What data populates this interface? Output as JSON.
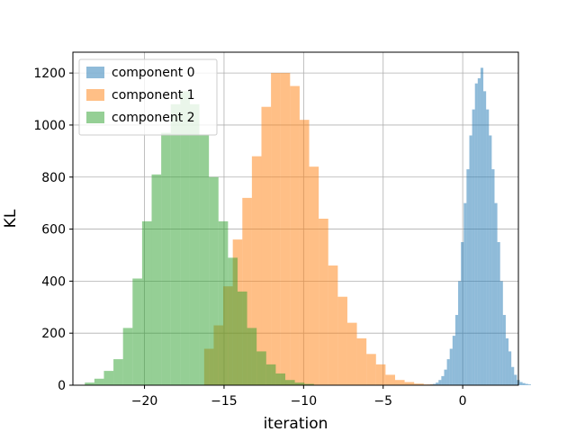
{
  "chart_data": {
    "type": "histogram",
    "xlabel": "iteration",
    "ylabel": "KL",
    "xlim": [
      -24.5,
      3.5
    ],
    "ylim": [
      0,
      1280
    ],
    "xticks": [
      -20,
      -15,
      -10,
      -5,
      0
    ],
    "xtick_labels": [
      "−20",
      "−15",
      "−10",
      "−5",
      "0"
    ],
    "yticks": [
      0,
      200,
      400,
      600,
      800,
      1000,
      1200
    ],
    "ytick_labels": [
      "0",
      "200",
      "400",
      "600",
      "800",
      "1000",
      "1200"
    ],
    "grid": true,
    "legend": "upper-left",
    "alpha": 0.5,
    "series": [
      {
        "name": "component 0",
        "color": "#1f77b4",
        "bin_start": -2.4,
        "bin_width": 0.176,
        "counts": [
          1,
          2,
          3,
          5,
          10,
          20,
          35,
          60,
          100,
          140,
          190,
          270,
          400,
          550,
          700,
          830,
          960,
          1060,
          1160,
          1180,
          1220,
          1130,
          1060,
          960,
          830,
          700,
          550,
          400,
          270,
          180,
          130,
          70,
          40,
          20,
          12,
          8,
          5,
          3
        ]
      },
      {
        "name": "component 1",
        "color": "#ff7f0e",
        "bin_start": -16.25,
        "bin_width": 0.6,
        "counts": [
          140,
          230,
          380,
          560,
          720,
          880,
          1070,
          1200,
          1200,
          1150,
          1020,
          840,
          640,
          460,
          340,
          240,
          180,
          120,
          80,
          40,
          20,
          12,
          6,
          3
        ]
      },
      {
        "name": "component 2",
        "color": "#2ca02c",
        "bin_start": -23.75,
        "bin_width": 0.6,
        "counts": [
          10,
          25,
          55,
          100,
          220,
          410,
          630,
          810,
          970,
          1080,
          1130,
          1080,
          960,
          800,
          630,
          490,
          360,
          220,
          130,
          80,
          45,
          20,
          10,
          5
        ]
      }
    ]
  }
}
